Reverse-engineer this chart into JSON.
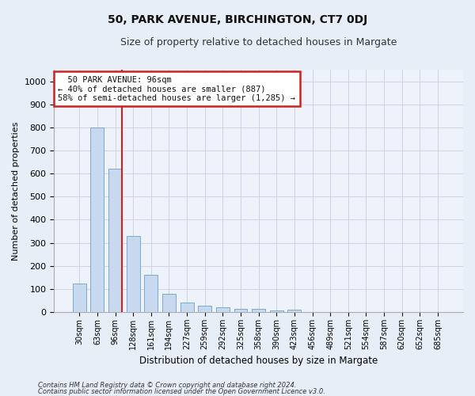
{
  "title": "50, PARK AVENUE, BIRCHINGTON, CT7 0DJ",
  "subtitle": "Size of property relative to detached houses in Margate",
  "xlabel": "Distribution of detached houses by size in Margate",
  "ylabel": "Number of detached properties",
  "bar_labels": [
    "30sqm",
    "63sqm",
    "96sqm",
    "128sqm",
    "161sqm",
    "194sqm",
    "227sqm",
    "259sqm",
    "292sqm",
    "325sqm",
    "358sqm",
    "390sqm",
    "423sqm",
    "456sqm",
    "489sqm",
    "521sqm",
    "554sqm",
    "587sqm",
    "620sqm",
    "652sqm",
    "685sqm"
  ],
  "bar_values": [
    125,
    800,
    620,
    328,
    160,
    80,
    40,
    27,
    22,
    15,
    15,
    8,
    10,
    0,
    0,
    0,
    0,
    0,
    0,
    0,
    0
  ],
  "bar_color": "#c8d8ee",
  "bar_edge_color": "#7aaad0",
  "vline_color": "#cc2222",
  "ylim": [
    0,
    1050
  ],
  "yticks": [
    0,
    100,
    200,
    300,
    400,
    500,
    600,
    700,
    800,
    900,
    1000
  ],
  "annotation_text": "  50 PARK AVENUE: 96sqm\n← 40% of detached houses are smaller (887)\n58% of semi-detached houses are larger (1,285) →",
  "annotation_box_color": "#cc2222",
  "footnote1": "Contains HM Land Registry data © Crown copyright and database right 2024.",
  "footnote2": "Contains public sector information licensed under the Open Government Licence v3.0.",
  "background_color": "#e8eef8",
  "plot_background": "#eef2fb",
  "grid_color": "#c8cfe0",
  "title_fontsize": 10,
  "subtitle_fontsize": 9,
  "ylabel_fontsize": 8,
  "xlabel_fontsize": 8.5,
  "tick_label_fontsize": 7,
  "annotation_fontsize": 7.5,
  "footnote_fontsize": 6
}
